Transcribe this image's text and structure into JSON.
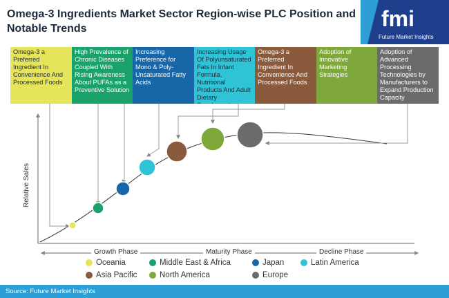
{
  "title": "Omega-3 Ingredients Market Sector Region-wise PLC Position and Notable Trends",
  "logo": {
    "mark": "fmi",
    "tagline": "Future Market Insights"
  },
  "trend_boxes": [
    {
      "text": "Omega-3 a Preferred Ingredient In Convenience And Processed Foods",
      "color": "#e5e45a"
    },
    {
      "text": "High Prevalence of Chronic Diseases Coupled With Rising Awareness About PUFAs as a Preventive Solution",
      "color": "#19a36b"
    },
    {
      "text": "Increasing Preference for Mono & Poly-Unsaturated Fatty Acids",
      "color": "#1766a8"
    },
    {
      "text": "Increasing Usage Of Polyunsaturated Fats In Infant Formula, Nutritional Products And Adult Dietary Supplements",
      "color": "#2ec4d6"
    },
    {
      "text": "Omega-3 a Preferred Ingredient In Convenience And Processed Foods",
      "color": "#8a5a3c"
    },
    {
      "text": "Adoption of Innovative Marketing Strategies",
      "color": "#7ea93a"
    },
    {
      "text": "Adoption of Advanced Processing Technologies by Manufacturers to Expand Production Capacity",
      "color": "#6b6b6b"
    }
  ],
  "y_axis_label": "Relative Sales",
  "phases": [
    "Growth Phase",
    "Maturity Phase",
    "Decline Phase"
  ],
  "legend": [
    {
      "label": "Oceania",
      "color": "#e5e45a"
    },
    {
      "label": "Middle East & Africa",
      "color": "#19a36b"
    },
    {
      "label": "Japan",
      "color": "#1766a8"
    },
    {
      "label": "Latin America",
      "color": "#2ec4d6"
    },
    {
      "label": "Asia Pacific",
      "color": "#8a5a3c"
    },
    {
      "label": "North America",
      "color": "#7ea93a"
    },
    {
      "label": "Europe",
      "color": "#6b6b6b"
    }
  ],
  "source": "Source: Future Market Insights"
}
